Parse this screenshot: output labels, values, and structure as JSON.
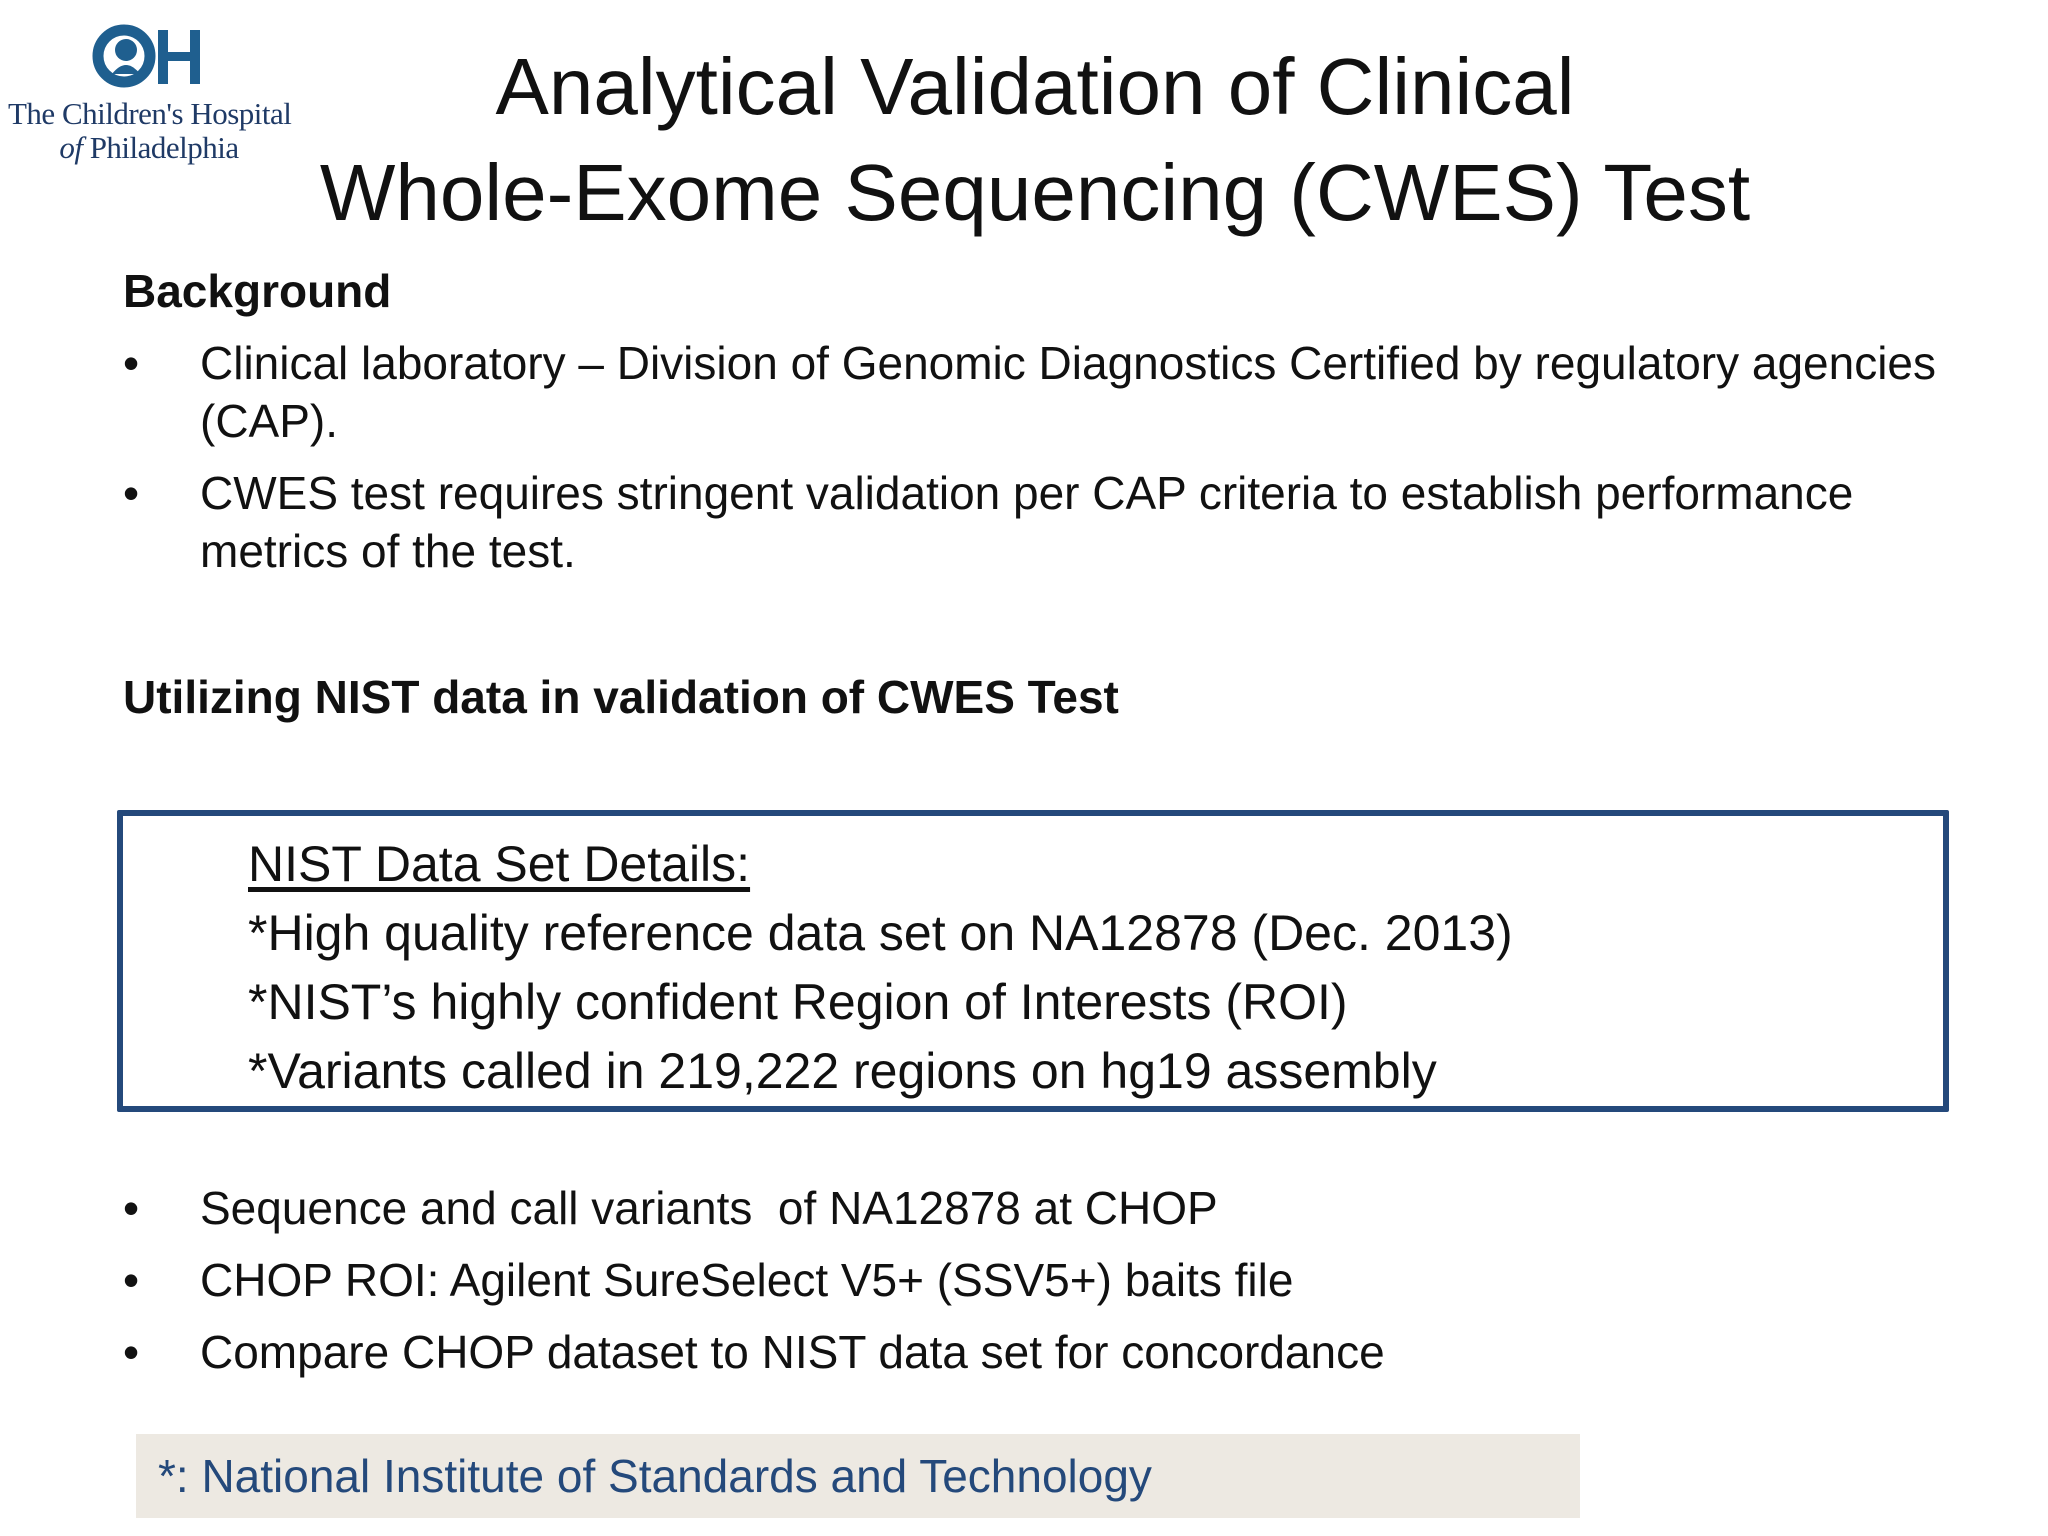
{
  "logo": {
    "line1": "The Children's Hospital",
    "line2_italic": "of",
    "line2_rest": "Philadelphia",
    "mark_color": "#1f5f8f"
  },
  "title": {
    "line1": "Analytical Validation of Clinical",
    "line2": "Whole-Exome Sequencing (CWES) Test"
  },
  "background": {
    "heading": "Background",
    "bullet_symbol": "•",
    "items": [
      "Clinical laboratory – Division of Genomic Diagnostics Certified by regulatory agencies (CAP).",
      "CWES test requires stringent validation per CAP criteria to establish performance metrics of the test."
    ]
  },
  "nist_section": {
    "heading": "Utilizing NIST data in validation of CWES Test",
    "box": {
      "title": "NIST Data Set Details:",
      "lines": [
        "*High quality reference data set on NA12878 (Dec. 2013)",
        "*NIST’s highly confident Region of Interests (ROI)",
        "*Variants called in 219,222 regions on hg19 assembly"
      ],
      "border_color": "#24497b"
    }
  },
  "chop_steps": {
    "bullet_symbol": "•",
    "items": [
      "Sequence and call variants  of NA12878 at CHOP",
      "CHOP ROI: Agilent SureSelect V5+ (SSV5+) baits file",
      "Compare CHOP dataset to NIST data set for concordance"
    ]
  },
  "footnote": {
    "text": "*: National Institute of Standards and Technology",
    "text_color": "#24497b",
    "background_color": "#ede9e2"
  }
}
